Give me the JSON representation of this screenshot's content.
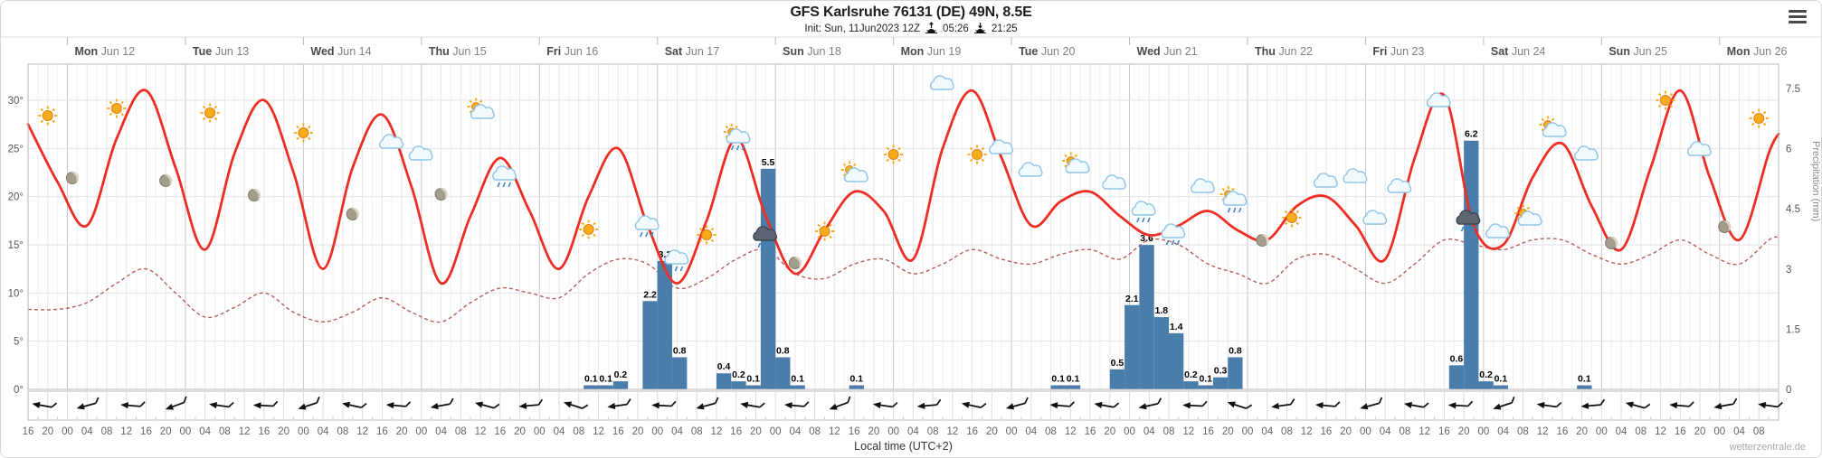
{
  "header": {
    "title": "GFS Karlsruhe 76131 (DE) 49N, 8.5E",
    "init_label": "Init: Sun, 11Jun2023 12Z",
    "sunrise_time": "05:26",
    "sunset_time": "21:25"
  },
  "footer": {
    "xlabel": "Local time (UTC+2)",
    "watermark": "wetterzentrale.de"
  },
  "chart_data": {
    "type": "line",
    "title": "GFS Karlsruhe 76131 (DE) 49N, 8.5E",
    "start_time": "Sun 11 Jun 2023 16:00 local",
    "hours_span": 356,
    "x_tick_interval_hours": 4,
    "x_tick_labels_cycle": [
      "16",
      "20",
      "00",
      "04",
      "08",
      "12"
    ],
    "days": [
      {
        "dow": "Mon",
        "date": "Jun 12"
      },
      {
        "dow": "Tue",
        "date": "Jun 13"
      },
      {
        "dow": "Wed",
        "date": "Jun 14"
      },
      {
        "dow": "Thu",
        "date": "Jun 15"
      },
      {
        "dow": "Fri",
        "date": "Jun 16"
      },
      {
        "dow": "Sat",
        "date": "Jun 17"
      },
      {
        "dow": "Sun",
        "date": "Jun 18"
      },
      {
        "dow": "Mon",
        "date": "Jun 19"
      },
      {
        "dow": "Tue",
        "date": "Jun 20"
      },
      {
        "dow": "Wed",
        "date": "Jun 21"
      },
      {
        "dow": "Thu",
        "date": "Jun 22"
      },
      {
        "dow": "Fri",
        "date": "Jun 23"
      },
      {
        "dow": "Sat",
        "date": "Jun 24"
      },
      {
        "dow": "Sun",
        "date": "Jun 25"
      },
      {
        "dow": "Mon",
        "date": "Jun 26"
      }
    ],
    "temp_axis": {
      "ticks": [
        "0°",
        "5°",
        "10°",
        "15°",
        "20°",
        "25°",
        "30°"
      ],
      "values": [
        0,
        5,
        10,
        15,
        20,
        25,
        30
      ],
      "range": [
        0,
        33.7
      ]
    },
    "precip_axis": {
      "label": "Precipitation (mm)",
      "ticks": [
        "0",
        "1.5",
        "3",
        "4.5",
        "6",
        "7.5"
      ],
      "values": [
        0,
        1.5,
        3,
        4.5,
        6,
        7.5
      ],
      "range": [
        0,
        8.1
      ]
    },
    "series": [
      {
        "name": "temperature-2m",
        "color": "#ee2e24",
        "style": "solid",
        "width": 2.8,
        "t": [
          0,
          6,
          12,
          18,
          24,
          30,
          36,
          42,
          48,
          54,
          60,
          66,
          72,
          78,
          84,
          90,
          96,
          102,
          108,
          114,
          120,
          126,
          132,
          138,
          144,
          150,
          156,
          162,
          168,
          174,
          180,
          186,
          192,
          198,
          204,
          210,
          216,
          222,
          228,
          234,
          240,
          246,
          252,
          258,
          264,
          270,
          276,
          282,
          288,
          294,
          300,
          306,
          312,
          318,
          324,
          330,
          336,
          342,
          348,
          354,
          356
        ],
        "v": [
          27.5,
          21.5,
          17,
          26,
          31,
          23,
          14.5,
          24.5,
          30,
          22.5,
          12.5,
          23,
          28.5,
          21,
          11,
          18,
          24,
          18.5,
          12.5,
          20,
          25,
          17,
          11,
          17.5,
          26,
          18,
          12,
          16.5,
          20.5,
          18.5,
          13.5,
          25,
          31,
          24,
          17,
          19.5,
          20.5,
          18,
          16,
          17,
          18.5,
          16.5,
          15.5,
          19,
          20,
          17,
          13.5,
          24,
          30.5,
          17,
          15,
          22,
          25.5,
          19,
          14.5,
          23,
          31,
          22,
          15.5,
          24.5,
          26.5
        ]
      },
      {
        "name": "dewpoint-2m",
        "color": "#b4605a",
        "style": "dashed",
        "width": 1.4,
        "t": [
          0,
          6,
          12,
          18,
          24,
          30,
          36,
          42,
          48,
          54,
          60,
          66,
          72,
          78,
          84,
          90,
          96,
          102,
          108,
          114,
          120,
          126,
          132,
          138,
          144,
          150,
          156,
          162,
          168,
          174,
          180,
          186,
          192,
          198,
          204,
          210,
          216,
          222,
          228,
          234,
          240,
          246,
          252,
          258,
          264,
          270,
          276,
          282,
          288,
          294,
          300,
          306,
          312,
          318,
          324,
          330,
          336,
          342,
          348,
          354,
          356
        ],
        "v": [
          8.3,
          8.3,
          9,
          11,
          12.5,
          10,
          7.5,
          8.5,
          10,
          8,
          7,
          8,
          9.5,
          8,
          7,
          9,
          10.5,
          10,
          9.5,
          12,
          13.5,
          13,
          10.5,
          11.5,
          13.5,
          14.5,
          12,
          11.5,
          13,
          13.5,
          12,
          13,
          14.5,
          13.5,
          13,
          14,
          14.5,
          13.5,
          15.5,
          15,
          13,
          12,
          11,
          13.5,
          14,
          12.5,
          11,
          13,
          15.5,
          15,
          14.5,
          15.5,
          15.5,
          14,
          13,
          14,
          15.5,
          14,
          13,
          15.5,
          15.8
        ]
      }
    ],
    "precipitation_bars": {
      "color": "#4a7da9",
      "bar_hours": 3,
      "bars": [
        {
          "t": 113,
          "v": 0.1
        },
        {
          "t": 116,
          "v": 0.1
        },
        {
          "t": 119,
          "v": 0.2
        },
        {
          "t": 125,
          "v": 2.2
        },
        {
          "t": 128,
          "v": 3.2
        },
        {
          "t": 131,
          "v": 0.8
        },
        {
          "t": 140,
          "v": 0.4
        },
        {
          "t": 143,
          "v": 0.2
        },
        {
          "t": 146,
          "v": 0.1
        },
        {
          "t": 149,
          "v": 5.5
        },
        {
          "t": 152,
          "v": 0.8
        },
        {
          "t": 155,
          "v": 0.1
        },
        {
          "t": 167,
          "v": 0.1
        },
        {
          "t": 208,
          "v": 0.1
        },
        {
          "t": 211,
          "v": 0.1
        },
        {
          "t": 220,
          "v": 0.5
        },
        {
          "t": 223,
          "v": 2.1
        },
        {
          "t": 226,
          "v": 3.6
        },
        {
          "t": 229,
          "v": 1.8
        },
        {
          "t": 232,
          "v": 1.4
        },
        {
          "t": 235,
          "v": 0.2
        },
        {
          "t": 238,
          "v": 0.1
        },
        {
          "t": 241,
          "v": 0.3
        },
        {
          "t": 244,
          "v": 0.8
        },
        {
          "t": 289,
          "v": 0.6
        },
        {
          "t": 292,
          "v": 6.2
        },
        {
          "t": 295,
          "v": 0.2
        },
        {
          "t": 298,
          "v": 0.1
        },
        {
          "t": 315,
          "v": 0.1
        }
      ]
    },
    "weather_icons": [
      {
        "t": 4,
        "y": 127,
        "type": "sun"
      },
      {
        "t": 9,
        "y": 196,
        "type": "moon"
      },
      {
        "t": 18,
        "y": 119,
        "type": "sun"
      },
      {
        "t": 28,
        "y": 199,
        "type": "moon"
      },
      {
        "t": 37,
        "y": 124,
        "type": "sun"
      },
      {
        "t": 46,
        "y": 215,
        "type": "moon"
      },
      {
        "t": 56,
        "y": 146,
        "type": "sun"
      },
      {
        "t": 66,
        "y": 236,
        "type": "moon"
      },
      {
        "t": 74,
        "y": 157,
        "type": "cloud"
      },
      {
        "t": 80,
        "y": 170,
        "type": "cloud"
      },
      {
        "t": 84,
        "y": 214,
        "type": "moon"
      },
      {
        "t": 92,
        "y": 122,
        "type": "sun_cloud"
      },
      {
        "t": 97,
        "y": 194,
        "type": "cloud_drizzle"
      },
      {
        "t": 114,
        "y": 253,
        "type": "sun"
      },
      {
        "t": 126,
        "y": 249,
        "type": "cloud_drizzle"
      },
      {
        "t": 132,
        "y": 287,
        "type": "cloud_drizzle"
      },
      {
        "t": 138,
        "y": 259,
        "type": "sun"
      },
      {
        "t": 144,
        "y": 151,
        "type": "sun_cloud_drizzle"
      },
      {
        "t": 150,
        "y": 261,
        "type": "rain_heavy"
      },
      {
        "t": 156,
        "y": 290,
        "type": "moon"
      },
      {
        "t": 162,
        "y": 255,
        "type": "sun"
      },
      {
        "t": 168,
        "y": 192,
        "type": "sun_cloud"
      },
      {
        "t": 176,
        "y": 170,
        "type": "sun"
      },
      {
        "t": 186,
        "y": 92,
        "type": "cloud"
      },
      {
        "t": 193,
        "y": 170,
        "type": "sun"
      },
      {
        "t": 198,
        "y": 163,
        "type": "cloud"
      },
      {
        "t": 204,
        "y": 188,
        "type": "cloud"
      },
      {
        "t": 213,
        "y": 182,
        "type": "sun_cloud"
      },
      {
        "t": 221,
        "y": 202,
        "type": "cloud"
      },
      {
        "t": 227,
        "y": 233,
        "type": "cloud_drizzle"
      },
      {
        "t": 233,
        "y": 258,
        "type": "cloud_drizzle"
      },
      {
        "t": 239,
        "y": 206,
        "type": "cloud"
      },
      {
        "t": 245,
        "y": 220,
        "type": "sun_cloud_drizzle"
      },
      {
        "t": 251,
        "y": 265,
        "type": "moon"
      },
      {
        "t": 257,
        "y": 240,
        "type": "sun"
      },
      {
        "t": 264,
        "y": 200,
        "type": "cloud"
      },
      {
        "t": 270,
        "y": 195,
        "type": "cloud"
      },
      {
        "t": 274,
        "y": 241,
        "type": "cloud"
      },
      {
        "t": 279,
        "y": 206,
        "type": "cloud"
      },
      {
        "t": 287,
        "y": 111,
        "type": "cloud"
      },
      {
        "t": 293,
        "y": 243,
        "type": "rain_heavy"
      },
      {
        "t": 299,
        "y": 256,
        "type": "cloud"
      },
      {
        "t": 305,
        "y": 240,
        "type": "sun_cloud"
      },
      {
        "t": 310,
        "y": 142,
        "type": "sun_cloud"
      },
      {
        "t": 317,
        "y": 170,
        "type": "cloud"
      },
      {
        "t": 322,
        "y": 268,
        "type": "moon"
      },
      {
        "t": 333,
        "y": 110,
        "type": "sun"
      },
      {
        "t": 340,
        "y": 165,
        "type": "cloud"
      },
      {
        "t": 345,
        "y": 250,
        "type": "moon"
      },
      {
        "t": 352,
        "y": 130,
        "type": "sun"
      }
    ],
    "wind": {
      "first_arrow_hour": 3,
      "arrow_spacing_hours": 9,
      "rotations_deg": [
        10,
        -15,
        5,
        -20,
        8,
        3,
        -18,
        12,
        5,
        -10,
        15,
        -5,
        18,
        -8,
        3,
        -15,
        10,
        5,
        -20,
        8,
        -5,
        12,
        -15,
        5,
        10,
        -12,
        3,
        18,
        -8,
        5,
        -15,
        10,
        3,
        -18,
        8,
        -5,
        15,
        5,
        -10,
        8
      ]
    },
    "legend_position": "none",
    "grid": true
  }
}
